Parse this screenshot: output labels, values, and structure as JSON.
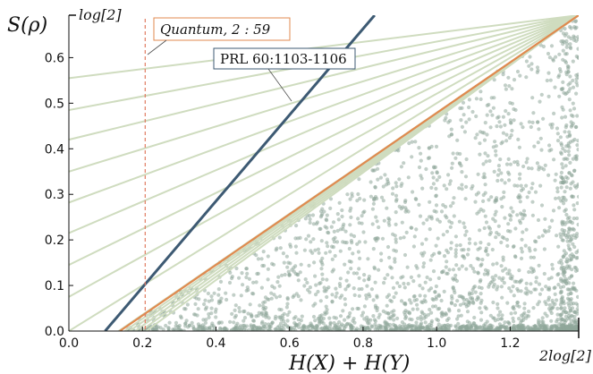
{
  "chart_data": {
    "type": "scatter",
    "title": "",
    "xlabel": "H(X) + H(Y)",
    "ylabel": "S(ρ)",
    "xlim": [
      0,
      1.3863
    ],
    "ylim": [
      0,
      0.6931
    ],
    "x_ticks": [
      "0.0",
      "0.2",
      "0.4",
      "0.6",
      "0.8",
      "1.0",
      "1.2"
    ],
    "x_tick_values": [
      0.0,
      0.2,
      0.4,
      0.6,
      0.8,
      1.0,
      1.2
    ],
    "y_ticks": [
      "0.0",
      "0.1",
      "0.2",
      "0.3",
      "0.4",
      "0.5",
      "0.6"
    ],
    "y_tick_values": [
      0.0,
      0.1,
      0.2,
      0.3,
      0.4,
      0.5,
      0.6
    ],
    "x_end_label": "2log[2]",
    "x_end_value": 1.3863,
    "y_end_label": "log[2]",
    "y_end_value": 0.6931,
    "grid": false,
    "colors": {
      "scatter": "#8fa89a",
      "fan_lines": "#cfdcbf",
      "bound_blue": "#3d5a73",
      "bound_orange": "#e08a4f",
      "vline": "#e07b62"
    },
    "lines": [
      {
        "name": "PRL 60:1103-1106",
        "x": [
          0.0986,
          0.8314
        ],
        "y": [
          0.0,
          0.6931
        ],
        "color": "#3d5a73"
      },
      {
        "name": "",
        "x": [
          0.1386,
          1.3863
        ],
        "y": [
          0.0,
          0.6931
        ],
        "color": "#e08a4f"
      }
    ],
    "fan_lines": {
      "apex": [
        1.3863,
        0.6931
      ],
      "left_y": [
        0.555,
        0.485,
        0.42,
        0.35,
        0.282,
        0.215,
        0.145,
        0.075,
        0.0,
        -0.075
      ],
      "bottom_x": [
        0.137,
        0.152,
        0.165,
        0.18,
        0.195,
        0.21
      ]
    },
    "vline": {
      "x": 0.2075,
      "color": "#e07b62"
    },
    "scatter_points": 2600
  },
  "annotations": {
    "quantum": "Quantum, 2 : 59",
    "prl": "PRL 60:1103-1106"
  }
}
